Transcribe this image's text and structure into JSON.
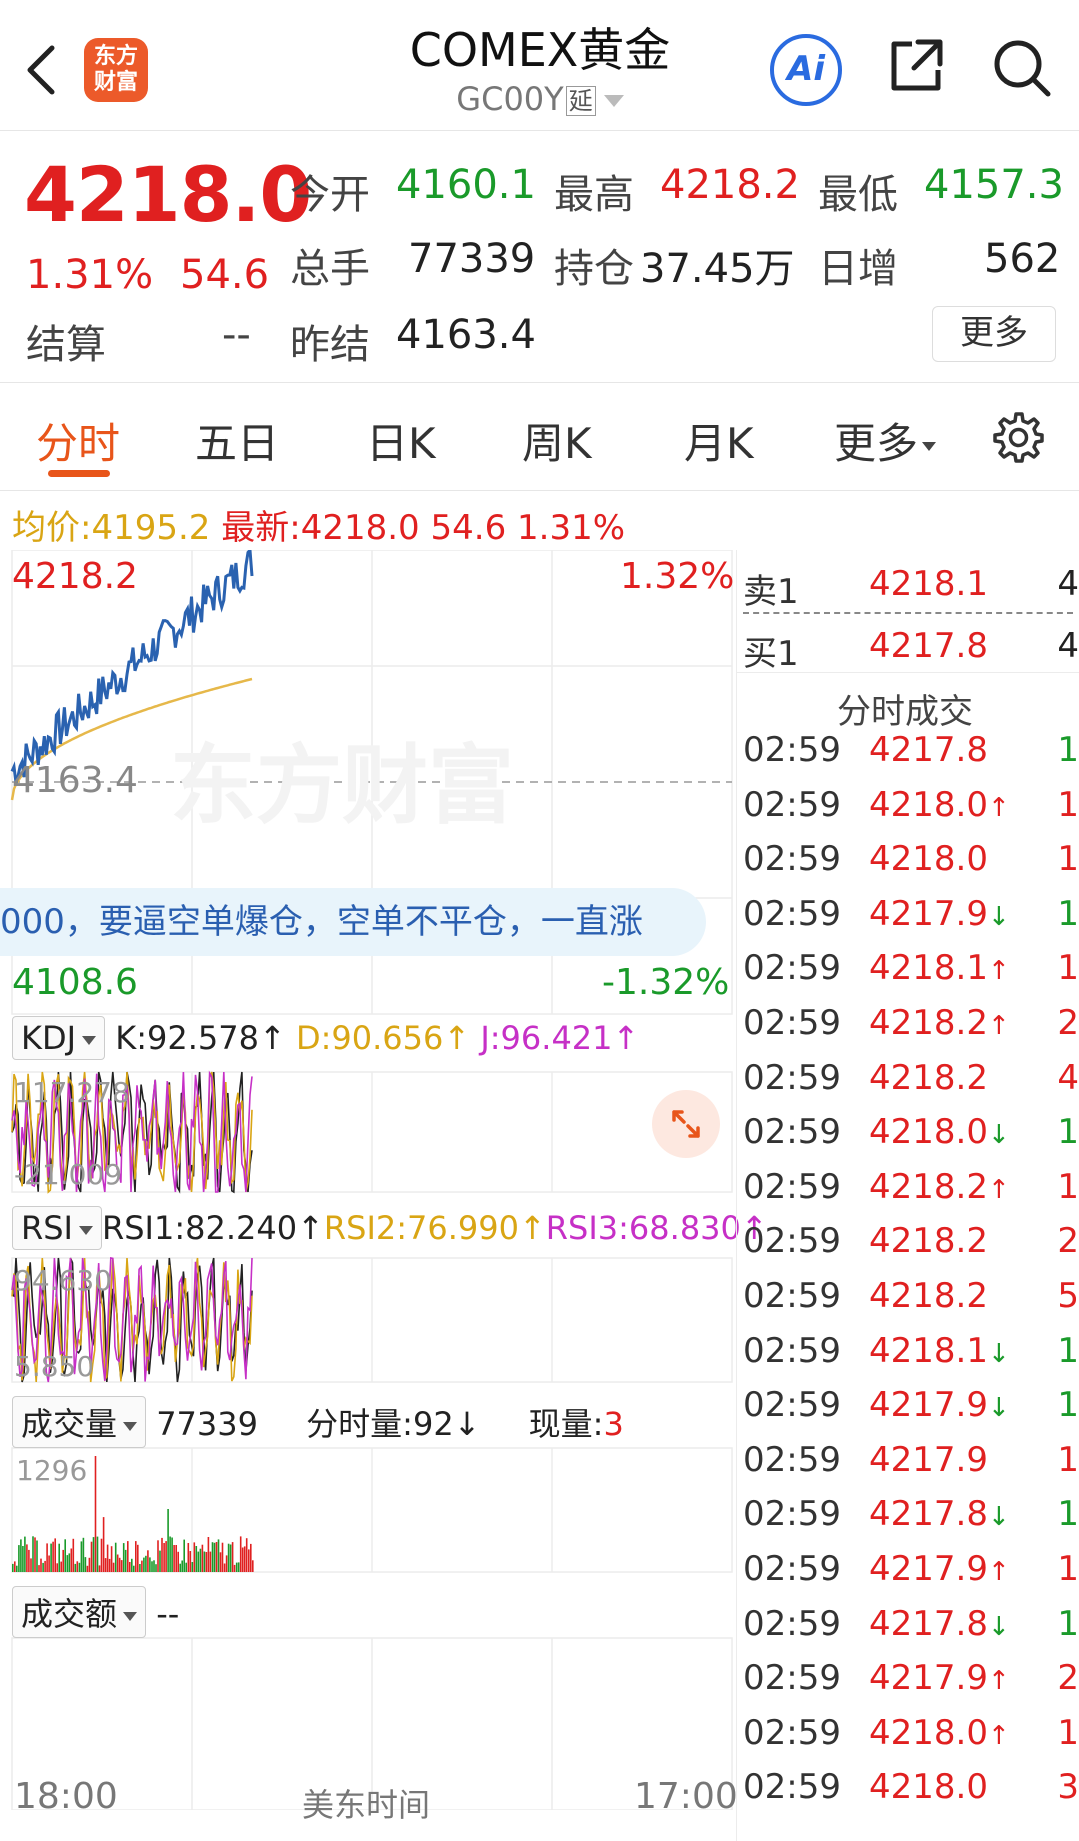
{
  "header": {
    "logo_line1": "东方",
    "logo_line2": "财富",
    "title": "COMEX黄金",
    "code": "GC00Y",
    "delay_tag": "延",
    "ai_label": "Ai"
  },
  "quote": {
    "price": "4218.0",
    "pct": "1.31%",
    "chg": "54.6",
    "open_label": "今开",
    "open": "4160.1",
    "high_label": "最高",
    "high": "4218.2",
    "low_label": "最低",
    "low": "4157.3",
    "volume_label": "总手",
    "volume": "77339",
    "oi_label": "持仓",
    "oi": "37.45万",
    "daily_inc_label": "日增",
    "daily_inc": "562",
    "settle_label": "结算",
    "settle": "--",
    "prev_settle_label": "昨结",
    "prev_settle": "4163.4",
    "more_label": "更多"
  },
  "tabs": [
    {
      "label": "分时",
      "active": true
    },
    {
      "label": "五日"
    },
    {
      "label": "日K"
    },
    {
      "label": "周K"
    },
    {
      "label": "月K"
    },
    {
      "label": "更多"
    }
  ],
  "info_line": {
    "avg_label": "均价:",
    "avg": "4195.2",
    "latest_label": "最新:",
    "latest": "4218.0",
    "chg": "54.6",
    "pct": "1.31%"
  },
  "chart": {
    "top_price": "4218.2",
    "top_pct": "1.32%",
    "mid_price": "4163.4",
    "bottom_price": "4108.6",
    "bottom_pct": "-1.32%",
    "watermark": "东方财富",
    "banner": "000，要逼空单爆仓，空单不平仓，一直涨",
    "time_start": "18:00",
    "time_mid": "美东时间",
    "time_end": "17:00"
  },
  "kdj": {
    "name": "KDJ",
    "k": "K:92.578↑",
    "d": "D:90.656↑",
    "j": "J:96.421↑",
    "top": "117.278",
    "bottom": "-21.009"
  },
  "rsi": {
    "name": "RSI",
    "rsi1": "RSI1:82.240↑",
    "rsi2": "RSI2:76.990↑",
    "rsi3": "RSI3:68.830↑",
    "top": "94.630",
    "bottom": "5.850"
  },
  "volume": {
    "name": "成交量",
    "total": "77339",
    "minute_label": "分时量:",
    "minute": "92↓",
    "current_label": "现量:",
    "current": "3",
    "max": "1296"
  },
  "amount": {
    "name": "成交额",
    "value": "--"
  },
  "orderbook": {
    "sell_label": "卖1",
    "sell_price": "4218.1",
    "sell_vol": "4",
    "buy_label": "买1",
    "buy_price": "4217.8",
    "buy_vol": "4",
    "trades_title": "分时成交"
  },
  "trades": [
    {
      "time": "02:59",
      "price": "4217.8",
      "dir": "",
      "vol": "1",
      "vol_color": "green"
    },
    {
      "time": "02:59",
      "price": "4218.0",
      "dir": "up",
      "vol": "1",
      "vol_color": "red"
    },
    {
      "time": "02:59",
      "price": "4218.0",
      "dir": "",
      "vol": "1",
      "vol_color": "red"
    },
    {
      "time": "02:59",
      "price": "4217.9",
      "dir": "down",
      "vol": "1",
      "vol_color": "green"
    },
    {
      "time": "02:59",
      "price": "4218.1",
      "dir": "up",
      "vol": "1",
      "vol_color": "red"
    },
    {
      "time": "02:59",
      "price": "4218.2",
      "dir": "up",
      "vol": "2",
      "vol_color": "red"
    },
    {
      "time": "02:59",
      "price": "4218.2",
      "dir": "",
      "vol": "4",
      "vol_color": "red"
    },
    {
      "time": "02:59",
      "price": "4218.0",
      "dir": "down",
      "vol": "1",
      "vol_color": "green"
    },
    {
      "time": "02:59",
      "price": "4218.2",
      "dir": "up",
      "vol": "1",
      "vol_color": "red"
    },
    {
      "time": "02:59",
      "price": "4218.2",
      "dir": "",
      "vol": "2",
      "vol_color": "red"
    },
    {
      "time": "02:59",
      "price": "4218.2",
      "dir": "",
      "vol": "5",
      "vol_color": "red"
    },
    {
      "time": "02:59",
      "price": "4218.1",
      "dir": "down",
      "vol": "1",
      "vol_color": "green"
    },
    {
      "time": "02:59",
      "price": "4217.9",
      "dir": "down",
      "vol": "1",
      "vol_color": "green"
    },
    {
      "time": "02:59",
      "price": "4217.9",
      "dir": "",
      "vol": "1",
      "vol_color": "red"
    },
    {
      "time": "02:59",
      "price": "4217.8",
      "dir": "down",
      "vol": "1",
      "vol_color": "green"
    },
    {
      "time": "02:59",
      "price": "4217.9",
      "dir": "up",
      "vol": "1",
      "vol_color": "red"
    },
    {
      "time": "02:59",
      "price": "4217.8",
      "dir": "down",
      "vol": "1",
      "vol_color": "green"
    },
    {
      "time": "02:59",
      "price": "4217.9",
      "dir": "up",
      "vol": "2",
      "vol_color": "red"
    },
    {
      "time": "02:59",
      "price": "4218.0",
      "dir": "up",
      "vol": "1",
      "vol_color": "red"
    },
    {
      "time": "02:59",
      "price": "4218.0",
      "dir": "",
      "vol": "3",
      "vol_color": "red"
    }
  ],
  "colors": {
    "up": "#e02020",
    "down": "#1a9a2a",
    "accent": "#e8551a",
    "price_line": "#2a62b0",
    "avg_line": "#e6b84a",
    "kdj_k": "#222222",
    "kdj_d": "#d9a514",
    "kdj_j": "#c630c6"
  },
  "icons": [
    "back-icon",
    "logo",
    "ai-icon",
    "share-icon",
    "search-icon",
    "gear-icon",
    "expand-icon"
  ]
}
